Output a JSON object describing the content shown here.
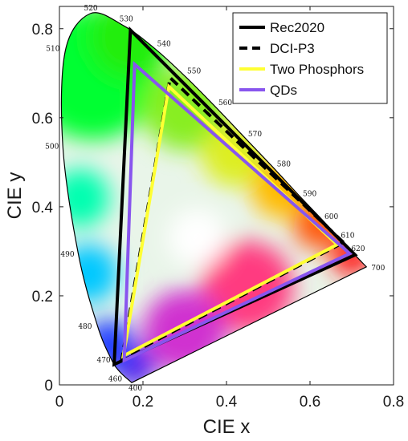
{
  "chart_data": {
    "type": "chromaticity_diagram",
    "xlabel": "CIE x",
    "ylabel": "CIE y",
    "xlim": [
      0,
      0.8
    ],
    "ylim": [
      0,
      0.85
    ],
    "x_ticks": [
      "0",
      "0.2",
      "0.4",
      "0.6",
      "0.8"
    ],
    "y_ticks": [
      "0",
      "0.2",
      "0.4",
      "0.6",
      "0.8"
    ],
    "x_tick_values": [
      0,
      0.2,
      0.4,
      0.6,
      0.8
    ],
    "y_tick_values": [
      0,
      0.2,
      0.4,
      0.6,
      0.8
    ],
    "spectral_locus_labels": [
      {
        "label": "400",
        "x": 0.173,
        "y": 0.005
      },
      {
        "label": "460",
        "x": 0.144,
        "y": 0.03
      },
      {
        "label": "470",
        "x": 0.124,
        "y": 0.058
      },
      {
        "label": "480",
        "x": 0.091,
        "y": 0.133
      },
      {
        "label": "490",
        "x": 0.045,
        "y": 0.295
      },
      {
        "label": "500",
        "x": 0.008,
        "y": 0.538
      },
      {
        "label": "510",
        "x": 0.014,
        "y": 0.75
      },
      {
        "label": "520",
        "x": 0.074,
        "y": 0.834
      },
      {
        "label": "530",
        "x": 0.155,
        "y": 0.806
      },
      {
        "label": "540",
        "x": 0.23,
        "y": 0.754
      },
      {
        "label": "550",
        "x": 0.302,
        "y": 0.692
      },
      {
        "label": "560",
        "x": 0.373,
        "y": 0.625
      },
      {
        "label": "570",
        "x": 0.444,
        "y": 0.555
      },
      {
        "label": "580",
        "x": 0.513,
        "y": 0.487
      },
      {
        "label": "590",
        "x": 0.575,
        "y": 0.424
      },
      {
        "label": "600",
        "x": 0.627,
        "y": 0.373
      },
      {
        "label": "610",
        "x": 0.666,
        "y": 0.334
      },
      {
        "label": "620",
        "x": 0.691,
        "y": 0.308
      },
      {
        "label": "700",
        "x": 0.735,
        "y": 0.265
      }
    ],
    "series": [
      {
        "name": "Rec2020",
        "color": "#000000",
        "style": "solid",
        "points": [
          [
            0.708,
            0.292
          ],
          [
            0.17,
            0.797
          ],
          [
            0.131,
            0.046
          ]
        ]
      },
      {
        "name": "DCI-P3",
        "color": "#000000",
        "style": "dashed",
        "points": [
          [
            0.68,
            0.32
          ],
          [
            0.265,
            0.69
          ],
          [
            0.15,
            0.06
          ]
        ]
      },
      {
        "name": "Two Phosphors",
        "color": "#ffff33",
        "style": "solid",
        "points": [
          [
            0.665,
            0.315
          ],
          [
            0.262,
            0.67
          ],
          [
            0.153,
            0.065
          ]
        ]
      },
      {
        "name": "QDs",
        "color": "#8855ee",
        "style": "solid",
        "points": [
          [
            0.695,
            0.295
          ],
          [
            0.18,
            0.72
          ],
          [
            0.155,
            0.055
          ]
        ]
      }
    ],
    "legend_position": "top-right",
    "grid": false
  }
}
